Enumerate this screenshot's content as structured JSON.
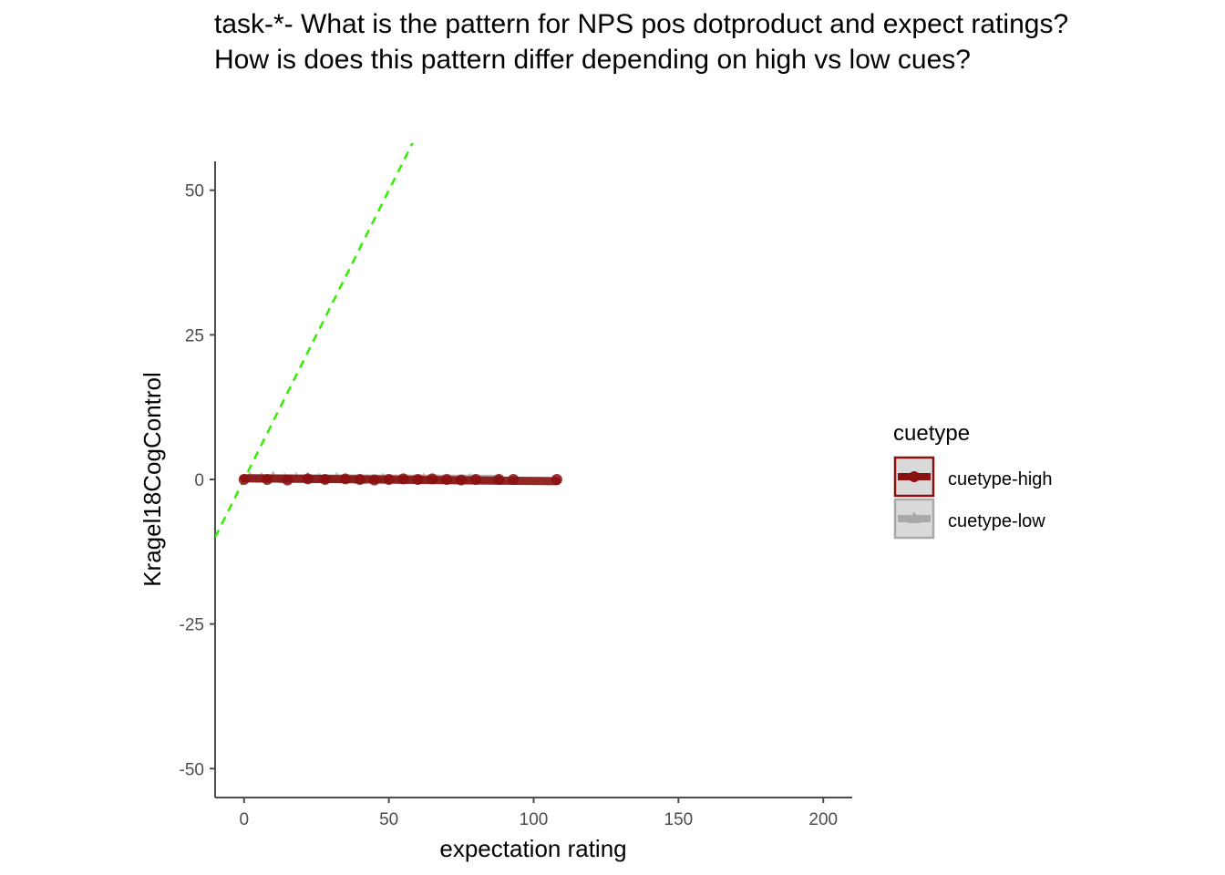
{
  "title_lines": [
    "task-*- What is the pattern for NPS pos dotproduct and expect ratings?",
    "How is does this pattern differ depending on high vs low cues?"
  ],
  "chart_data": {
    "type": "scatter",
    "title": "task-*- What is the pattern for NPS pos dotproduct and expect ratings? How is does this pattern differ depending on high vs low cues?",
    "xlabel": "expectation rating",
    "ylabel": "Kragel18CogControl",
    "xlim": [
      -10,
      210
    ],
    "ylim": [
      -55,
      55
    ],
    "x_ticks": [
      0,
      50,
      100,
      150,
      200
    ],
    "y_ticks": [
      -50,
      -25,
      0,
      25,
      50
    ],
    "grid": false,
    "legend": {
      "title": "cuetype",
      "placement": "right",
      "entries": [
        "cuetype-high",
        "cuetype-low"
      ]
    },
    "reference_line": {
      "style": "dashed",
      "color": "#33ee00",
      "slope": 1,
      "intercept": 0
    },
    "series": [
      {
        "name": "cuetype-high",
        "color": "#8b1010",
        "marker": "circle",
        "x": [
          0,
          8,
          15,
          22,
          28,
          35,
          40,
          45,
          50,
          55,
          60,
          65,
          70,
          75,
          80,
          88,
          93,
          108
        ],
        "y": [
          0,
          0,
          -0.1,
          0.1,
          0,
          0.1,
          0,
          -0.1,
          0,
          0.1,
          0,
          0.1,
          0,
          -0.1,
          0,
          0,
          0,
          0
        ],
        "fit": {
          "x": [
            0,
            108
          ],
          "y": [
            0.2,
            -0.3
          ]
        }
      },
      {
        "name": "cuetype-low",
        "color": "#a9a9a9",
        "marker": "triangle",
        "x": [
          2,
          6,
          10,
          14,
          18,
          22,
          26,
          32,
          40,
          48,
          55,
          62,
          70,
          78,
          88
        ],
        "y": [
          0.3,
          0.2,
          0.4,
          0.1,
          0.2,
          0.3,
          0.1,
          0.2,
          0,
          0.1,
          0,
          0.1,
          0,
          0.1,
          0
        ],
        "fit": {
          "x": [
            2,
            88
          ],
          "y": [
            0.2,
            0.1
          ]
        }
      }
    ]
  }
}
